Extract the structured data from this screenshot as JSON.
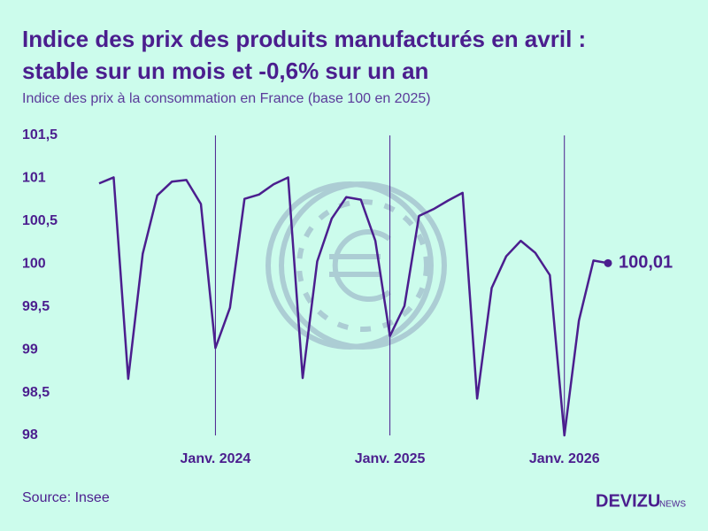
{
  "chart_data": {
    "type": "line",
    "title": "Indice des prix des produits manufacturés en avril : stable sur un mois et -0,6% sur un an",
    "subtitle": "Indice des prix à la consommation en France (base 100 en 2025)",
    "categories": [
      null,
      null,
      null,
      null,
      null,
      null,
      null,
      null,
      "Janv. 2024",
      null,
      null,
      null,
      null,
      null,
      null,
      null,
      null,
      null,
      null,
      null,
      "Janv. 2025",
      null,
      null,
      null,
      null,
      null,
      null,
      null,
      null,
      null,
      null,
      null,
      "Janv. 2026",
      null,
      null,
      null
    ],
    "series": [
      {
        "name": "Indice des prix",
        "color": "#4b1e8e",
        "values": [
          100.94,
          101.01,
          98.66,
          100.12,
          100.8,
          100.96,
          100.98,
          100.7,
          99.02,
          99.49,
          100.76,
          100.81,
          100.93,
          101.01,
          98.67,
          100.03,
          100.53,
          100.78,
          100.75,
          100.27,
          99.16,
          99.51,
          100.56,
          100.64,
          100.74,
          100.83,
          98.43,
          99.72,
          100.09,
          100.27,
          100.13,
          99.87,
          98.0,
          99.34,
          100.04,
          100.01
        ],
        "value_labels": [
          null,
          null,
          null,
          null,
          null,
          null,
          null,
          null,
          null,
          null,
          null,
          null,
          null,
          null,
          null,
          null,
          null,
          null,
          null,
          null,
          null,
          null,
          null,
          null,
          null,
          null,
          null,
          null,
          null,
          null,
          null,
          null,
          null,
          null,
          null,
          "100,01"
        ]
      }
    ],
    "ylim": [
      98,
      101.5
    ],
    "yticks": [
      98,
      {
        "value": 98.5,
        "label": "98,5"
      },
      99,
      {
        "value": 99.5,
        "label": "99,5"
      },
      100,
      {
        "value": 100.5,
        "label": "100,5"
      },
      101,
      {
        "value": 101.5,
        "label": "101,5"
      }
    ]
  },
  "source": "Source: Insee",
  "logo": {
    "name": "DEVIZU",
    "suffix": "NEWS"
  }
}
